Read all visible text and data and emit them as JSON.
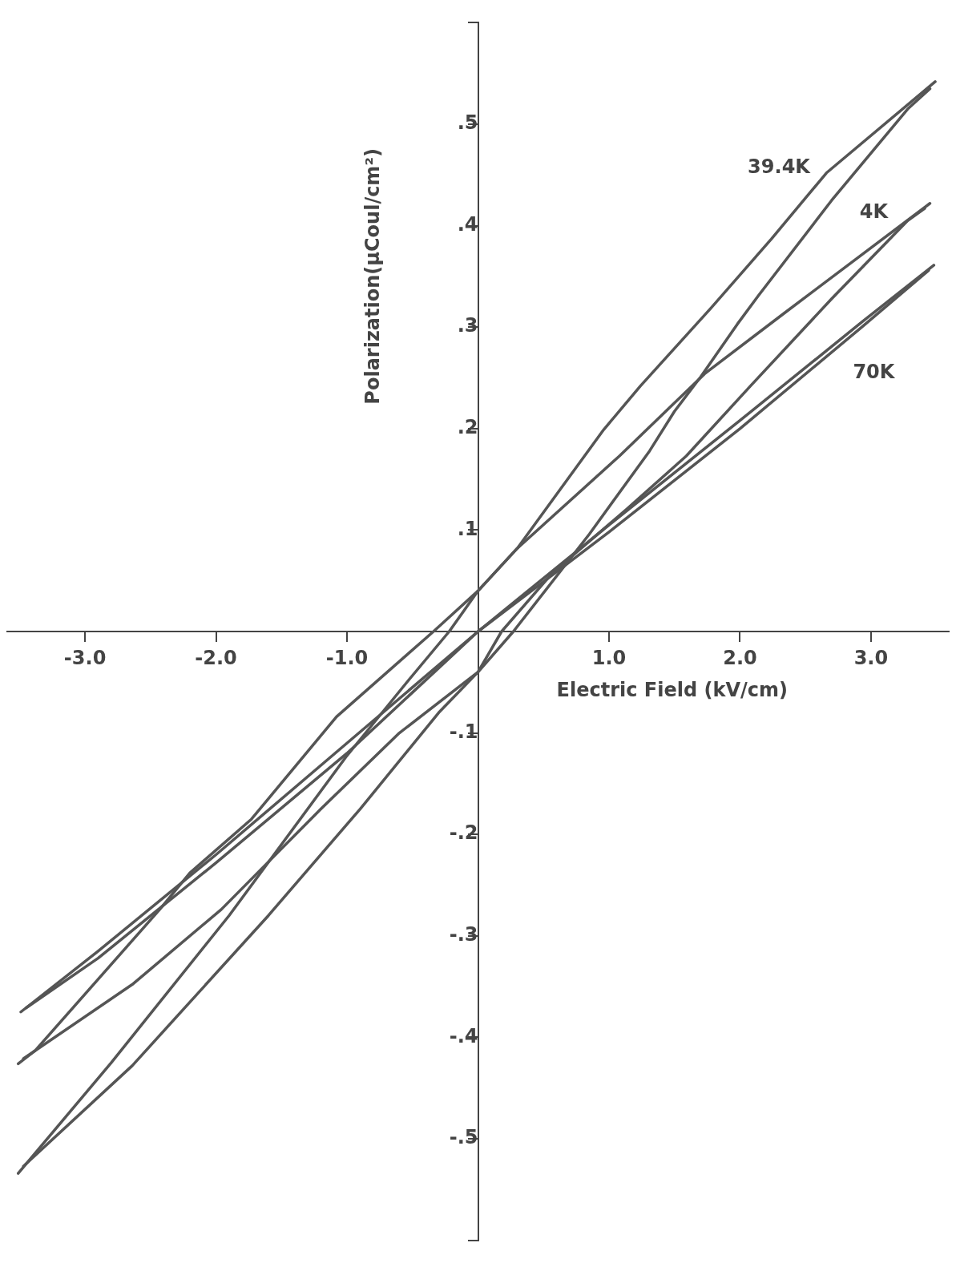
{
  "chart_data": {
    "type": "line",
    "xlabel": "Electric Field (kV/cm)",
    "ylabel": "Polarization(μCoul/cm²)",
    "xlim": [
      -3.6,
      3.6
    ],
    "ylim": [
      -0.6,
      0.6
    ],
    "xticks": [
      {
        "value": -3,
        "label": "-3.0"
      },
      {
        "value": -2,
        "label": "-2.0"
      },
      {
        "value": -1,
        "label": "-1.0"
      },
      {
        "value": 1,
        "label": "1.0"
      },
      {
        "value": 2,
        "label": "2.0"
      },
      {
        "value": 3,
        "label": "3.0"
      }
    ],
    "yticks": [
      {
        "value": -0.6,
        "label": null
      },
      {
        "value": -0.5,
        "label": "-.5"
      },
      {
        "value": -0.4,
        "label": "-.4"
      },
      {
        "value": -0.3,
        "label": "-.3"
      },
      {
        "value": -0.2,
        "label": "-.2"
      },
      {
        "value": -0.1,
        "label": "-.1"
      },
      {
        "value": 0.1,
        "label": ".1"
      },
      {
        "value": 0.2,
        "label": ".2"
      },
      {
        "value": 0.3,
        "label": ".3"
      },
      {
        "value": 0.4,
        "label": ".4"
      },
      {
        "value": 0.5,
        "label": ".5"
      },
      {
        "value": 0.6,
        "label": null
      }
    ],
    "grid": false,
    "legend": false,
    "marker": "none",
    "line_style": "solid",
    "series": [
      {
        "name": "39.4K",
        "color": "#555555",
        "x": [
          -3.51,
          -2.8,
          -1.9,
          -1.66,
          -1.01,
          -0.53,
          -0.22,
          0,
          0.3,
          0.96,
          1.24,
          1.78,
          2.24,
          2.66,
          3.49
        ],
        "values": [
          -0.534,
          -0.425,
          -0.28,
          -0.238,
          -0.124,
          -0.048,
          0,
          0.04,
          0.082,
          0.199,
          0.242,
          0.319,
          0.387,
          0.452,
          0.542
        ]
      },
      {
        "color": "#555555",
        "x": [
          -3.47,
          -2.64,
          -1.6,
          -0.9,
          -0.3,
          0,
          0.27,
          0.85,
          1.31,
          1.5,
          1.7,
          1.98,
          2.14,
          2.7,
          3.28,
          3.45
        ],
        "values": [
          -0.527,
          -0.428,
          -0.28,
          -0.175,
          -0.08,
          -0.04,
          0,
          0.096,
          0.178,
          0.217,
          0.251,
          0.303,
          0.331,
          0.425,
          0.515,
          0.535
        ]
      },
      {
        "name": "4K",
        "color": "#555555",
        "x": [
          -3.51,
          -3.38,
          -2.43,
          -2.2,
          -1.73,
          -1.08,
          -0.34,
          0,
          0.3,
          1.08,
          1.73,
          2.33,
          3.45
        ],
        "values": [
          -0.426,
          -0.413,
          -0.274,
          -0.238,
          -0.185,
          -0.084,
          0,
          0.04,
          0.082,
          0.173,
          0.254,
          0.313,
          0.422
        ]
      },
      {
        "color": "#555555",
        "x": [
          -3.47,
          -2.64,
          -1.96,
          -1.2,
          -0.6,
          0,
          0.18,
          0.57,
          1.13,
          1.59,
          2.08,
          2.7,
          3.28,
          3.41
        ],
        "values": [
          -0.421,
          -0.348,
          -0.274,
          -0.175,
          -0.1,
          -0.04,
          0,
          0.058,
          0.12,
          0.173,
          0.242,
          0.328,
          0.405,
          0.417
        ]
      },
      {
        "name": "70K",
        "color": "#555555",
        "x": [
          -3.49,
          -2.9,
          -2,
          -1,
          0,
          1,
          2,
          2.93,
          3.48
        ],
        "values": [
          -0.375,
          -0.315,
          -0.22,
          -0.11,
          0,
          0.105,
          0.208,
          0.305,
          0.361
        ]
      },
      {
        "color": "#555555",
        "x": [
          -3.45,
          -2.9,
          -2,
          -1,
          0,
          1,
          2,
          2.93,
          3.44
        ],
        "values": [
          -0.371,
          -0.322,
          -0.228,
          -0.12,
          0,
          0.098,
          0.2,
          0.3,
          0.356
        ]
      }
    ]
  }
}
